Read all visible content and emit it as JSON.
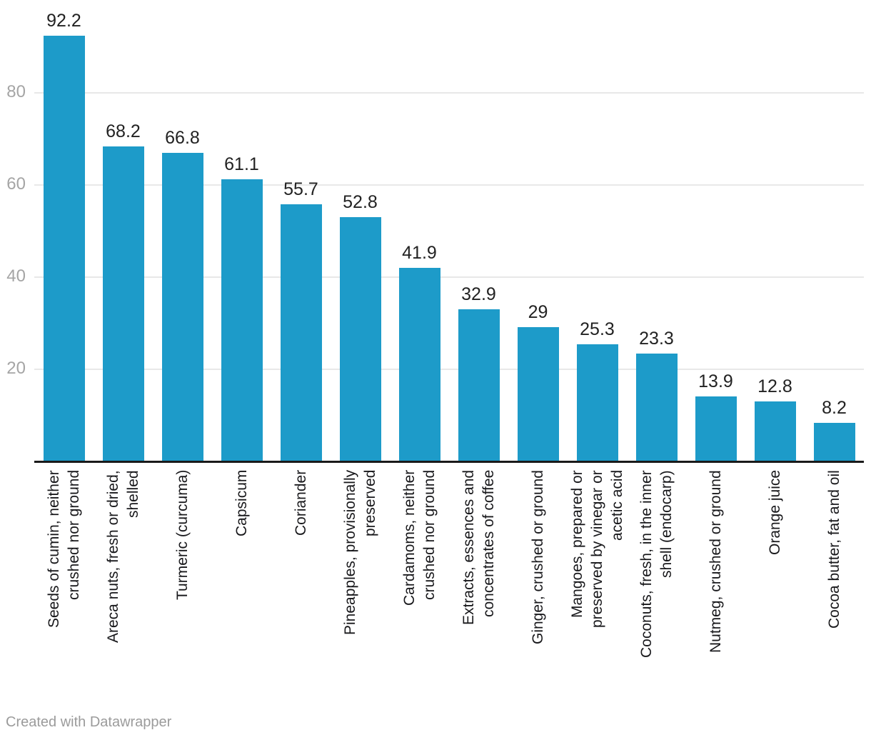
{
  "chart_data": {
    "type": "bar",
    "title": "",
    "xlabel": "",
    "ylabel": "",
    "categories": [
      "Seeds of cumin, neither\ncrushed nor ground",
      "Areca nuts, fresh or dried,\nshelled",
      "Turmeric (curcuma)",
      "Capsicum",
      "Coriander",
      "Pineapples, provisionally\npreserved",
      "Cardamoms, neither\ncrushed nor ground",
      "Extracts, essences and\nconcentrates of coffee",
      "Ginger, crushed or ground",
      "Mangoes, prepared or\npreserved by vinegar or\nacetic acid",
      "Coconuts, fresh, in the inner\nshell (endocarp)",
      "Nutmeg, crushed or ground",
      "Orange juice",
      "Cocoa butter, fat and oil"
    ],
    "values": [
      92.2,
      68.2,
      66.8,
      61.1,
      55.7,
      52.8,
      41.9,
      32.9,
      29,
      25.3,
      23.3,
      13.9,
      12.8,
      8.2
    ],
    "value_labels": [
      "92.2",
      "68.2",
      "66.8",
      "61.1",
      "55.7",
      "52.8",
      "41.9",
      "32.9",
      "29",
      "25.3",
      "23.3",
      "13.9",
      "12.8",
      "8.2"
    ],
    "ylim": [
      0,
      100
    ],
    "yticks": [
      20,
      40,
      60,
      80
    ],
    "grid": "horizontal",
    "legend": "none",
    "bar_color": "#1d9bc9"
  },
  "footer": {
    "attribution": "Created with Datawrapper"
  },
  "colors": {
    "bar": "#1d9bc9",
    "axis_line": "#1a1a1a",
    "gridline": "#e8e8e8",
    "tick_label": "#a5a5a5",
    "value_label": "#222222",
    "category_label": "#18181b",
    "footer_text": "#9b9b9b"
  }
}
